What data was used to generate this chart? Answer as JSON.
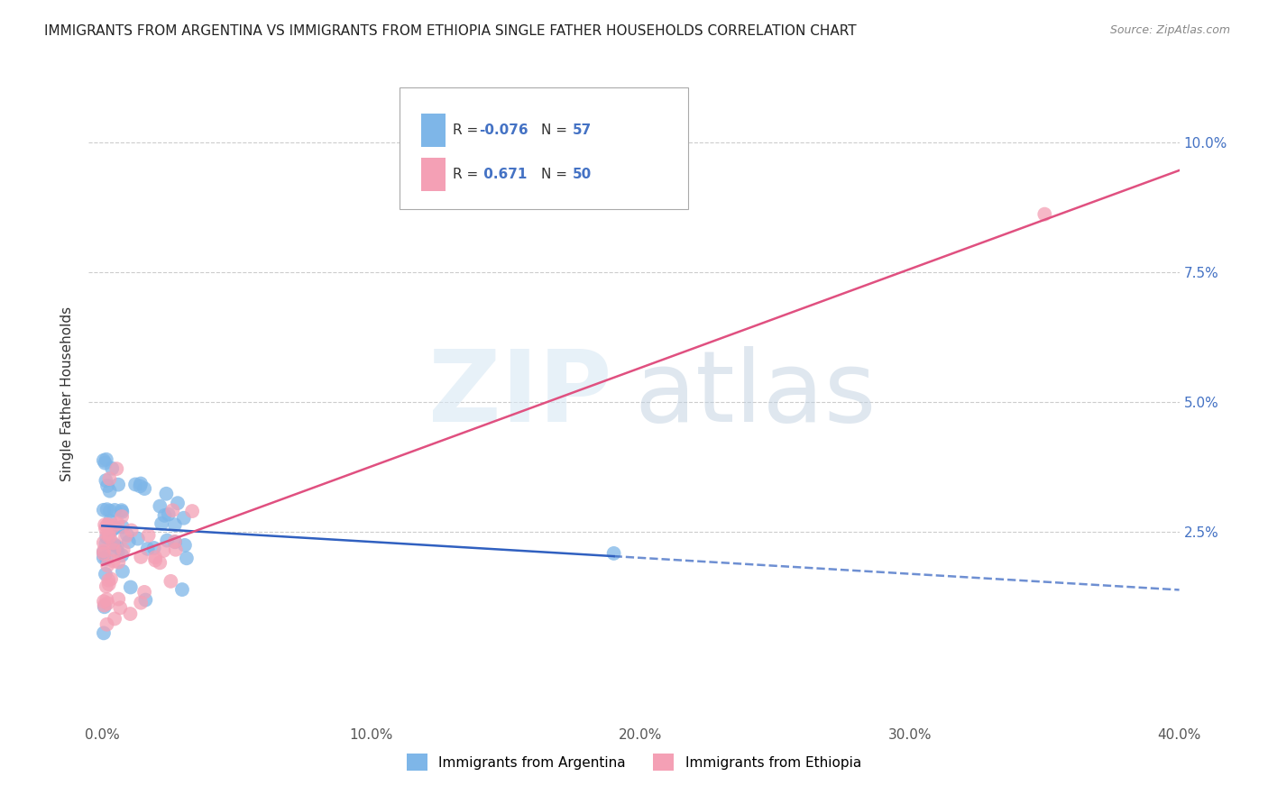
{
  "title": "IMMIGRANTS FROM ARGENTINA VS IMMIGRANTS FROM ETHIOPIA SINGLE FATHER HOUSEHOLDS CORRELATION CHART",
  "source": "Source: ZipAtlas.com",
  "ylabel": "Single Father Households",
  "legend_argentina": "Immigrants from Argentina",
  "legend_ethiopia": "Immigrants from Ethiopia",
  "r_argentina": -0.076,
  "n_argentina": 57,
  "r_ethiopia": 0.671,
  "n_ethiopia": 50,
  "color_argentina": "#7EB6E8",
  "color_ethiopia": "#F4A0B5",
  "trendline_argentina": "#3060C0",
  "trendline_ethiopia": "#E05080",
  "xlim": [
    -0.005,
    0.4
  ],
  "ylim": [
    -0.012,
    0.115
  ]
}
